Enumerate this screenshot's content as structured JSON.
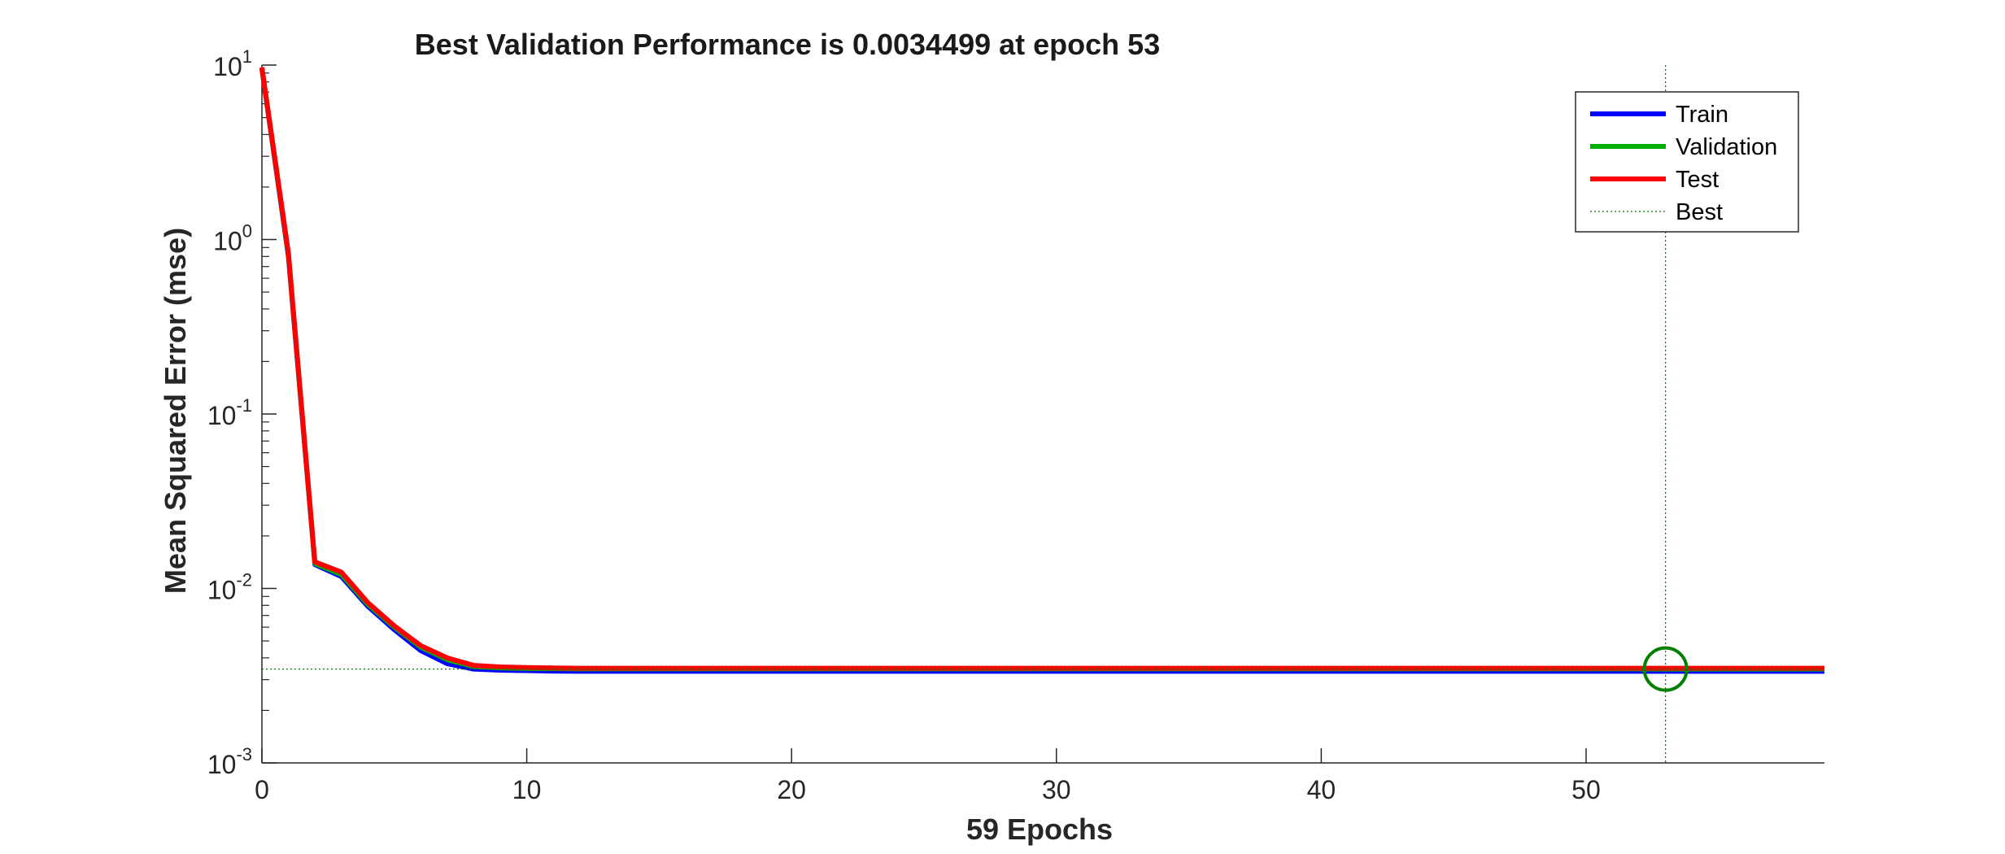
{
  "chart_data": {
    "type": "line",
    "title": "Best Validation Performance is 0.0034499 at epoch 53",
    "xlabel": "59 Epochs",
    "ylabel": "Mean Squared Error  (mse)",
    "xlim": [
      0,
      59
    ],
    "ylim": [
      0.001,
      10
    ],
    "yscale": "log",
    "x_ticks": [
      0,
      10,
      20,
      30,
      40,
      50
    ],
    "x_tick_labels": [
      "0",
      "10",
      "20",
      "30",
      "40",
      "50"
    ],
    "y_ticks": [
      {
        "value": 0.001,
        "base": "10",
        "exp": "-3"
      },
      {
        "value": 0.01,
        "base": "10",
        "exp": "-2"
      },
      {
        "value": 0.1,
        "base": "10",
        "exp": "-1"
      },
      {
        "value": 1,
        "base": "10",
        "exp": "0"
      },
      {
        "value": 10,
        "base": "10",
        "exp": "1"
      }
    ],
    "grid": false,
    "legend_position": "top-right",
    "x": [
      0,
      1,
      2,
      3,
      4,
      5,
      6,
      7,
      8,
      9,
      10,
      11,
      12,
      13,
      14,
      15,
      16,
      17,
      18,
      19,
      20,
      21,
      22,
      23,
      24,
      25,
      26,
      27,
      28,
      29,
      30,
      31,
      32,
      33,
      34,
      35,
      36,
      37,
      38,
      39,
      40,
      41,
      42,
      43,
      44,
      45,
      46,
      47,
      48,
      49,
      50,
      51,
      52,
      53,
      54,
      55,
      56,
      57,
      58,
      59
    ],
    "series": [
      {
        "name": "Train",
        "color": "#0000ff",
        "values": [
          9.5,
          0.8,
          0.0137,
          0.0117,
          0.0079,
          0.0058,
          0.0044,
          0.0037,
          0.00345,
          0.0034,
          0.00338,
          0.00336,
          0.00335,
          0.00335,
          0.00335,
          0.00335,
          0.00335,
          0.00335,
          0.00335,
          0.00335,
          0.00335,
          0.00335,
          0.00335,
          0.00335,
          0.00335,
          0.00335,
          0.00335,
          0.00335,
          0.00335,
          0.00335,
          0.00335,
          0.00335,
          0.00335,
          0.00335,
          0.00335,
          0.00335,
          0.00335,
          0.00335,
          0.00335,
          0.00335,
          0.00335,
          0.00335,
          0.00335,
          0.00335,
          0.00335,
          0.00335,
          0.00335,
          0.00335,
          0.00335,
          0.00335,
          0.00335,
          0.00335,
          0.00335,
          0.00335,
          0.00335,
          0.00335,
          0.00335,
          0.00335,
          0.00335,
          0.00335
        ]
      },
      {
        "name": "Validation",
        "color": "#00b000",
        "values": [
          9.6,
          0.82,
          0.0139,
          0.012,
          0.0081,
          0.006,
          0.0046,
          0.0039,
          0.00357,
          0.0035,
          0.00348,
          0.00347,
          0.00346,
          0.00346,
          0.00346,
          0.00346,
          0.00346,
          0.00346,
          0.00346,
          0.00346,
          0.00346,
          0.00346,
          0.00346,
          0.00346,
          0.00346,
          0.00346,
          0.00346,
          0.00346,
          0.00346,
          0.00346,
          0.00346,
          0.00346,
          0.00346,
          0.00346,
          0.00346,
          0.00346,
          0.00346,
          0.00346,
          0.00346,
          0.00346,
          0.00346,
          0.00346,
          0.00346,
          0.00346,
          0.00346,
          0.00346,
          0.00346,
          0.00346,
          0.00346,
          0.00346,
          0.00346,
          0.00346,
          0.00346,
          0.00345,
          0.00345,
          0.00345,
          0.00345,
          0.00345,
          0.00345,
          0.00345
        ]
      },
      {
        "name": "Test",
        "color": "#ff0000",
        "values": [
          9.7,
          0.84,
          0.0142,
          0.0124,
          0.0083,
          0.0061,
          0.0047,
          0.004,
          0.00362,
          0.00355,
          0.00352,
          0.0035,
          0.00349,
          0.00349,
          0.00349,
          0.00349,
          0.00349,
          0.00349,
          0.00349,
          0.00349,
          0.00349,
          0.00349,
          0.00349,
          0.00349,
          0.00349,
          0.00349,
          0.00349,
          0.00349,
          0.00349,
          0.00349,
          0.00349,
          0.00349,
          0.00349,
          0.00349,
          0.00349,
          0.00349,
          0.00349,
          0.00349,
          0.00349,
          0.00349,
          0.00349,
          0.00349,
          0.00349,
          0.00349,
          0.00349,
          0.00349,
          0.00349,
          0.00349,
          0.00349,
          0.00349,
          0.00349,
          0.00349,
          0.00349,
          0.00349,
          0.00349,
          0.00349,
          0.00349,
          0.00349,
          0.00349,
          0.00349
        ]
      }
    ],
    "best": {
      "name": "Best",
      "epoch": 53,
      "value": 0.0034499,
      "color": "#008000"
    },
    "legend_entries": [
      "Train",
      "Validation",
      "Test",
      "Best"
    ]
  }
}
